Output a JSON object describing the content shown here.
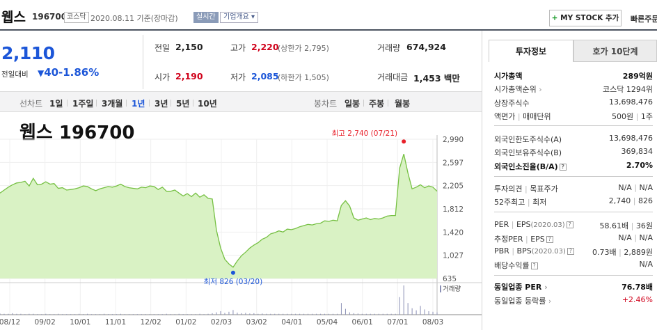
{
  "header": {
    "name": "웹스",
    "code": "196700",
    "market_badge": "코스닥",
    "date": "2020.08.11",
    "basis": "기준(장마감)",
    "realtime": "실시간",
    "corp_overview": "기업개요",
    "mystock": "MY STOCK 추가",
    "quick_order": "빠른주문"
  },
  "quote": {
    "price": "2,110",
    "change_label": "전일대비",
    "change": "40",
    "change_pct": "-1.86%",
    "prev_close_label": "전일",
    "prev_close": "2,150",
    "open_label": "시가",
    "open": "2,190",
    "high_label": "고가",
    "high": "2,220",
    "upper_limit": "(상한가 2,795)",
    "low_label": "저가",
    "low": "2,085",
    "lower_limit": "(하한가 1,505)",
    "volume_label": "거래량",
    "volume": "674,924",
    "amount_label": "거래대금",
    "amount": "1,453",
    "amount_unit": "백만"
  },
  "chart_tabs": {
    "line_label": "선차트",
    "line_items": [
      "1일",
      "1주일",
      "3개월",
      "1년",
      "3년",
      "5년",
      "10년"
    ],
    "selected": "1년",
    "candle_label": "봉차트",
    "candle_items": [
      "일봉",
      "주봉",
      "월봉"
    ]
  },
  "chart_data": {
    "type": "area",
    "title": "웹스 196700",
    "yticks": [
      "2,990",
      "2,597",
      "2,205",
      "1,812",
      "1,420",
      "1,027",
      "635"
    ],
    "ylim": [
      635,
      2990
    ],
    "xticks": [
      "08/12",
      "09/02",
      "10/01",
      "11/01",
      "12/02",
      "01/02",
      "02/03",
      "03/02",
      "04/01",
      "05/04",
      "06/01",
      "07/01",
      "08/03"
    ],
    "max_label": "최고 2,740 (07/21)",
    "min_label": "최저 826 (03/20)",
    "max_value": 2740,
    "min_value": 826,
    "volume_label": "거래량",
    "colors": {
      "line": "#76c043",
      "fill": "#d9f2c4",
      "max": "#e8202a",
      "min": "#1c56d8"
    },
    "series": [
      {
        "values": [
          2080,
          2130,
          2180,
          2220,
          2250,
          2260,
          2280,
          2200,
          2330,
          2220,
          2230,
          2270,
          2230,
          2240,
          2160,
          2170,
          2130,
          2140,
          2150,
          2170,
          2200,
          2190,
          2150,
          2120,
          2150,
          2170,
          2190,
          2180,
          2200,
          2230,
          2190,
          2170,
          2160,
          2150,
          2180,
          2170,
          2200,
          2190,
          2140,
          2180,
          2110,
          2110,
          2130,
          2080,
          2030,
          2070,
          2020,
          2080,
          2010,
          2050,
          1990,
          1980,
          1450,
          1150,
          960,
          880,
          826,
          930,
          1020,
          1080,
          1150,
          1200,
          1240,
          1300,
          1330,
          1390,
          1410,
          1440,
          1420,
          1470,
          1460,
          1480,
          1510,
          1530,
          1550,
          1540,
          1560,
          1570,
          1610,
          1600,
          1620,
          1610,
          1870,
          1950,
          1860,
          1660,
          1620,
          1640,
          1660,
          1630,
          1650,
          1640,
          1660,
          1690,
          1700,
          1700,
          2500,
          2740,
          2420,
          2150,
          2180,
          2220,
          2170,
          2200,
          2180,
          2110
        ],
        "volume": [
          4,
          3,
          3,
          5,
          3,
          3,
          2,
          3,
          3,
          2,
          2,
          3,
          2,
          2,
          3,
          2,
          2,
          2,
          2,
          3,
          2,
          3,
          2,
          2,
          2,
          3,
          2,
          2,
          2,
          3,
          2,
          2,
          2,
          2,
          2,
          2,
          2,
          2,
          2,
          2,
          3,
          2,
          2,
          3,
          2,
          2,
          2,
          2,
          3,
          2,
          3,
          5,
          8,
          12,
          6,
          10,
          16,
          7,
          5,
          6,
          4,
          5,
          3,
          4,
          3,
          3,
          3,
          3,
          3,
          3,
          3,
          3,
          3,
          3,
          3,
          3,
          3,
          3,
          3,
          3,
          3,
          3,
          40,
          20,
          8,
          5,
          4,
          3,
          3,
          3,
          3,
          3,
          3,
          3,
          3,
          3,
          60,
          100,
          40,
          22,
          15,
          30,
          18,
          12,
          10,
          8
        ]
      }
    ]
  },
  "info_panel": {
    "tab_active": "투자정보",
    "tab_inactive": "호가 10단계",
    "market_cap_label": "시가총액",
    "market_cap": "289억원",
    "market_cap_rank_label": "시가총액순위",
    "market_cap_rank": "코스닥 1294위",
    "listed_shares_label": "상장주식수",
    "listed_shares": "13,698,476",
    "par_label": "액면가",
    "trade_unit_label": "매매단위",
    "par": "500원",
    "trade_unit": "1주",
    "foreign_limit_label": "외국인한도주식수(A)",
    "foreign_limit": "13,698,476",
    "foreign_hold_label": "외국인보유주식수(B)",
    "foreign_hold": "369,834",
    "foreign_ratio_label": "외국인소진율(B/A)",
    "foreign_ratio": "2.70%",
    "opinion_label": "투자의견",
    "target_label": "목표주가",
    "opinion": "N/A",
    "target": "N/A",
    "high52_label": "52주최고",
    "low52_label": "최저",
    "high52": "2,740",
    "low52": "826",
    "per_label": "PER",
    "eps_label": "EPS",
    "eps_date": "(2020.03)",
    "per": "58.61배",
    "eps": "36원",
    "est_per_label": "추정PER",
    "est_eps_label": "EPS",
    "est_per": "N/A",
    "est_eps": "N/A",
    "pbr_label": "PBR",
    "bps_label": "BPS",
    "bps_date": "(2020.03)",
    "pbr": "0.73배",
    "bps": "2,889원",
    "dividend_label": "배당수익률",
    "dividend": "N/A",
    "industry_per_label": "동일업종 PER",
    "industry_per": "76.78배",
    "industry_change_label": "동일업종 등락률",
    "industry_change": "+2.46%"
  }
}
